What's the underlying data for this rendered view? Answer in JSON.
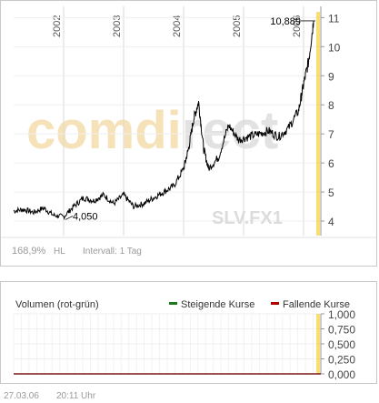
{
  "chart_data": [
    {
      "type": "line",
      "title": "",
      "watermark": "comdirect",
      "instrument_label": "SLV.FX1",
      "x_ticks": [
        "2002",
        "2003",
        "2004",
        "2005",
        "2006"
      ],
      "y_ticks": [
        "4",
        "5",
        "6",
        "7",
        "8",
        "9",
        "10",
        "11"
      ],
      "ylim": [
        3.5,
        11.2
      ],
      "ymax_tick_value": 11,
      "annotations": {
        "low": "4,050",
        "high": "10,889"
      },
      "low_value": 4.05,
      "high_value": 10.889,
      "performance": "168,9%",
      "performance_suffix": "HL",
      "interval_label": "Intervall: 1 Tag",
      "series": [
        {
          "x": [
            "2001-03",
            "2001-05",
            "2001-07",
            "2001-09",
            "2001-11",
            "2002-01",
            "2002-03",
            "2002-05",
            "2002-07",
            "2002-09",
            "2002-11",
            "2003-01",
            "2003-03",
            "2003-05",
            "2003-07",
            "2003-09",
            "2003-11",
            "2004-01",
            "2004-02",
            "2004-03",
            "2004-04",
            "2004-05",
            "2004-06",
            "2004-08",
            "2004-10",
            "2004-12",
            "2005-02",
            "2005-04",
            "2005-06",
            "2005-08",
            "2005-10",
            "2005-12",
            "2006-01",
            "2006-02",
            "2006-03"
          ],
          "values": [
            4.35,
            4.4,
            4.3,
            4.45,
            4.2,
            4.15,
            4.5,
            4.8,
            4.7,
            4.9,
            4.6,
            4.9,
            4.5,
            4.6,
            4.8,
            5.0,
            5.2,
            5.8,
            6.5,
            7.5,
            8.1,
            6.5,
            5.8,
            6.2,
            7.3,
            6.8,
            6.9,
            7.0,
            7.1,
            6.9,
            7.2,
            7.8,
            8.7,
            9.5,
            10.889
          ]
        }
      ]
    },
    {
      "type": "bar",
      "title": "Volumen (rot-grün)",
      "y_ticks": [
        "1,000",
        "0,750",
        "0,500",
        "0,250",
        "0,000"
      ],
      "ylim": [
        0,
        1
      ],
      "legend_placement": "top-right",
      "series": [
        {
          "name": "Steigende Kurse",
          "color": "#1a7a1a",
          "values": []
        },
        {
          "name": "Fallende Kurse",
          "color": "#b00000",
          "values": []
        }
      ]
    }
  ],
  "footer": {
    "date": "27.03.06",
    "time": "20:11 Uhr"
  },
  "colors": {
    "price_line": "#000000",
    "highlight": "#f2c200",
    "grid": "#d9d9d9",
    "watermark_orange": "#f6e2b8",
    "watermark_gray": "#e2e2e2"
  }
}
